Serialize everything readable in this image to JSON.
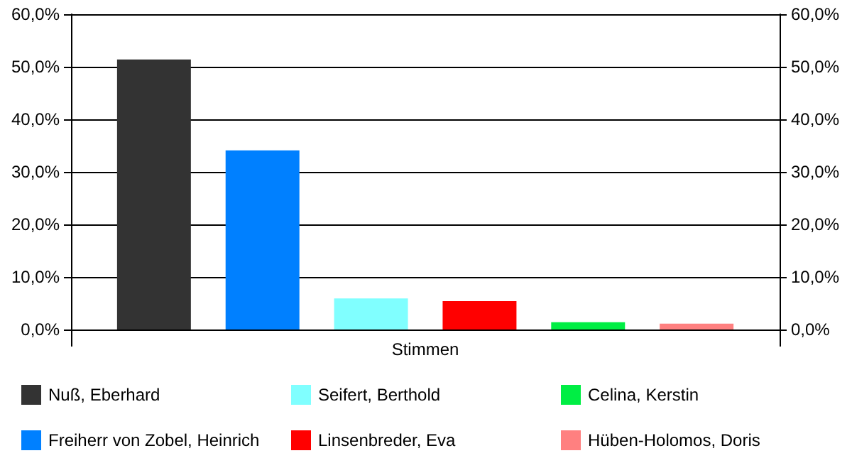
{
  "chart_data": {
    "type": "bar",
    "categories": [
      "Stimmen"
    ],
    "series": [
      {
        "name": "Nuß, Eberhard",
        "color": "#333333",
        "values": [
          51.4
        ]
      },
      {
        "name": "Freiherr von Zobel, Heinrich",
        "color": "#0080ff",
        "values": [
          34.1
        ]
      },
      {
        "name": "Seifert, Berthold",
        "color": "#80ffff",
        "values": [
          5.9
        ]
      },
      {
        "name": "Linsenbreder, Eva",
        "color": "#ff0000",
        "values": [
          5.4
        ]
      },
      {
        "name": "Celina, Kerstin",
        "color": "#00ee44",
        "values": [
          1.4
        ]
      },
      {
        "name": "Hüben-Holomos, Doris",
        "color": "#ff8080",
        "values": [
          1.1
        ]
      }
    ],
    "ylim": [
      0,
      60
    ],
    "yticks": [
      {
        "value": 0,
        "label": "0,0%"
      },
      {
        "value": 10,
        "label": "10,0%"
      },
      {
        "value": 20,
        "label": "20,0%"
      },
      {
        "value": 30,
        "label": "30,0%"
      },
      {
        "value": 40,
        "label": "40,0%"
      },
      {
        "value": 50,
        "label": "50,0%"
      },
      {
        "value": 60,
        "label": "60,0%"
      }
    ],
    "grid": "y",
    "legend": "bottom"
  }
}
